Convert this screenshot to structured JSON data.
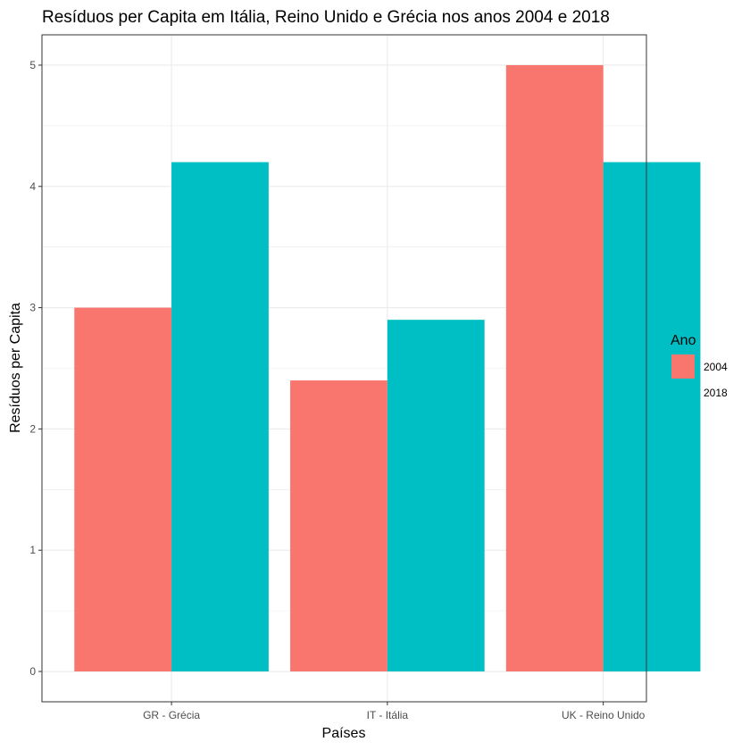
{
  "chart_data": {
    "type": "bar",
    "title": "Resíduos per Capita em Itália, Reino Unido e Grécia nos anos 2004 e 2018",
    "xlabel": "Países",
    "ylabel": "Resíduos per Capita",
    "categories": [
      "GR - Grécia",
      "IT - Itália",
      "UK - Reino Unido"
    ],
    "series": [
      {
        "name": "2004",
        "color": "#F8766D",
        "values": [
          3.0,
          2.4,
          5.0
        ]
      },
      {
        "name": "2018",
        "color": "#00BFC4",
        "values": [
          4.2,
          2.9,
          4.2
        ]
      }
    ],
    "ylim": [
      -0.25,
      5.25
    ],
    "yticks": [
      0,
      1,
      2,
      3,
      4,
      5
    ],
    "grid": true,
    "legend": {
      "title": "Ano",
      "position": "right"
    }
  }
}
